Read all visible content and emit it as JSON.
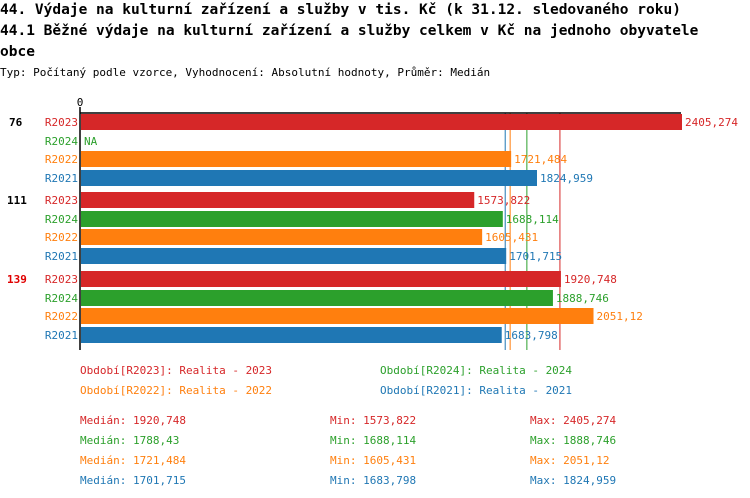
{
  "title_line1": "44. Výdaje na kulturní zařízení a služby v tis. Kč (k 31.12. sledovaného roku)",
  "title_line2": "44.1 Běžné výdaje na kulturní zařízení a služby celkem v Kč na jednoho obyvatele",
  "title_line3": "obce",
  "subtitle": "Typ: Počítaný podle vzorce, Vyhodnocení: Absolutní hodnoty, Průměr: Medián",
  "colors": {
    "R2023": "#d62728",
    "R2024": "#2ca02c",
    "R2022": "#ff7f0e",
    "R2021": "#1f77b4"
  },
  "chart_data": {
    "type": "bar",
    "orientation": "horizontal",
    "x_tick_labels": [
      "0"
    ],
    "xlim": [
      0,
      2405.274
    ],
    "groups": [
      {
        "label": "76",
        "highlight": false,
        "bars": [
          {
            "series": "R2023",
            "value": 2405.274,
            "label": "2405,274"
          },
          {
            "series": "R2024",
            "value": null,
            "label": "NA"
          },
          {
            "series": "R2022",
            "value": 1721.484,
            "label": "1721,484"
          },
          {
            "series": "R2021",
            "value": 1824.959,
            "label": "1824,959"
          }
        ]
      },
      {
        "label": "111",
        "highlight": false,
        "bars": [
          {
            "series": "R2023",
            "value": 1573.822,
            "label": "1573,822"
          },
          {
            "series": "R2024",
            "value": 1688.114,
            "label": "1688,114"
          },
          {
            "series": "R2022",
            "value": 1605.431,
            "label": "1605,431"
          },
          {
            "series": "R2021",
            "value": 1701.715,
            "label": "1701,715"
          }
        ]
      },
      {
        "label": "139",
        "highlight": true,
        "bars": [
          {
            "series": "R2023",
            "value": 1920.748,
            "label": "1920,748"
          },
          {
            "series": "R2024",
            "value": 1888.746,
            "label": "1888,746"
          },
          {
            "series": "R2022",
            "value": 2051.12,
            "label": "2051,12"
          },
          {
            "series": "R2021",
            "value": 1683.798,
            "label": "1683,798"
          }
        ]
      }
    ],
    "median_lines": [
      {
        "series": "R2021",
        "value": 1701.715
      },
      {
        "series": "R2022",
        "value": 1721.484
      },
      {
        "series": "R2024",
        "value": 1788.43
      },
      {
        "series": "R2023",
        "value": 1920.748
      }
    ],
    "legend": [
      {
        "series": "R2023",
        "text": "Období[R2023]: Realita - 2023"
      },
      {
        "series": "R2024",
        "text": "Období[R2024]: Realita - 2024"
      },
      {
        "series": "R2022",
        "text": "Období[R2022]: Realita - 2022"
      },
      {
        "series": "R2021",
        "text": "Období[R2021]: Realita - 2021"
      }
    ],
    "stats": [
      {
        "series": "R2023",
        "median": "Medián: 1920,748",
        "min": "Min: 1573,822",
        "max": "Max: 2405,274"
      },
      {
        "series": "R2024",
        "median": "Medián: 1788,43",
        "min": "Min: 1688,114",
        "max": "Max: 1888,746"
      },
      {
        "series": "R2022",
        "median": "Medián: 1721,484",
        "min": "Min: 1605,431",
        "max": "Max: 2051,12"
      },
      {
        "series": "R2021",
        "median": "Medián: 1701,715",
        "min": "Min: 1683,798",
        "max": "Max: 1824,959"
      }
    ]
  }
}
